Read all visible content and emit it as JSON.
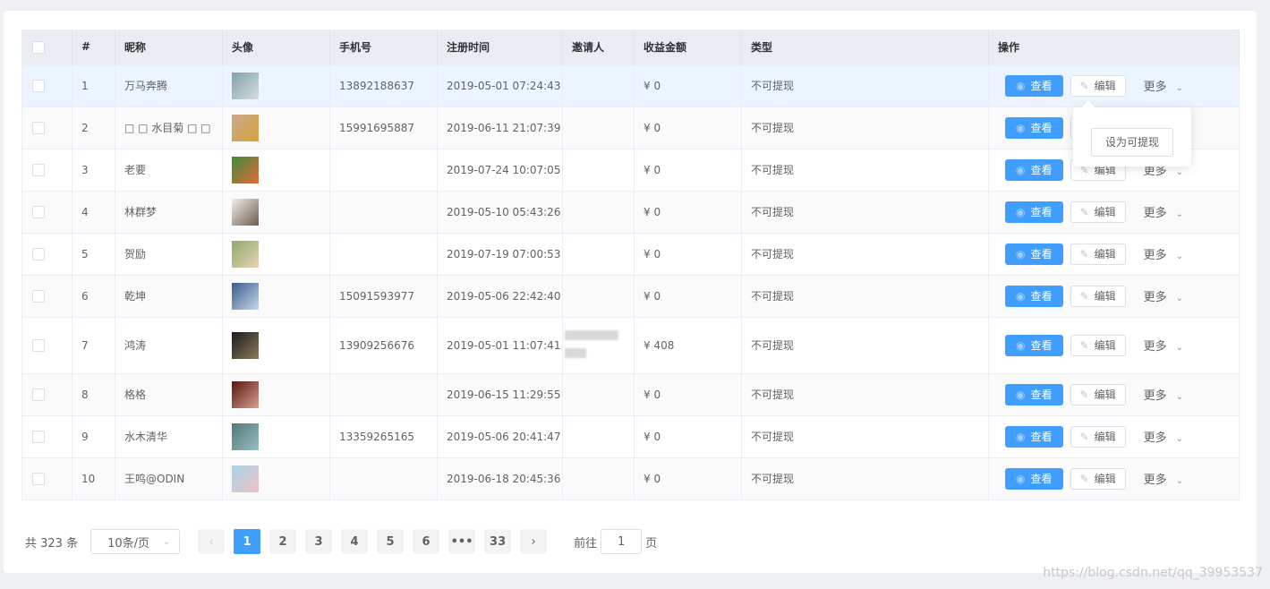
{
  "table": {
    "headers": [
      "#",
      "昵称",
      "头像",
      "手机号",
      "注册时间",
      "邀请人",
      "收益金额",
      "类型",
      "操作"
    ],
    "rows": [
      {
        "idx": "1",
        "nick": "万马奔腾",
        "phone": "13892188637",
        "time": "2019-05-01 07:24:43",
        "inviter": "",
        "amount": "¥ 0",
        "type": "不可提现",
        "avatar": [
          "#7fa3a8",
          "#d6dde0"
        ]
      },
      {
        "idx": "2",
        "nick": "□ □ 水目菊 □ □",
        "phone": "15991695887",
        "time": "2019-06-11 21:07:39",
        "inviter": "",
        "amount": "¥ 0",
        "type": "不可提现",
        "avatar": [
          "#c9a98a",
          "#d6a23a"
        ]
      },
      {
        "idx": "3",
        "nick": "老要",
        "phone": "",
        "time": "2019-07-24 10:07:05",
        "inviter": "",
        "amount": "¥ 0",
        "type": "不可提现",
        "avatar": [
          "#3f8b3a",
          "#e46a3a"
        ]
      },
      {
        "idx": "4",
        "nick": "林群梦",
        "phone": "",
        "time": "2019-05-10 05:43:26",
        "inviter": "",
        "amount": "¥ 0",
        "type": "不可提现",
        "avatar": [
          "#f2eeea",
          "#6d5b52"
        ]
      },
      {
        "idx": "5",
        "nick": "贺励",
        "phone": "",
        "time": "2019-07-19 07:00:53",
        "inviter": "",
        "amount": "¥ 0",
        "type": "不可提现",
        "avatar": [
          "#8cab6a",
          "#e9d2b5"
        ]
      },
      {
        "idx": "6",
        "nick": "乾坤",
        "phone": "15091593977",
        "time": "2019-05-06 22:42:40",
        "inviter": "",
        "amount": "¥ 0",
        "type": "不可提现",
        "avatar": [
          "#3a5c8e",
          "#c7d6e8"
        ]
      },
      {
        "idx": "7",
        "nick": "鸿涛",
        "phone": "13909256676",
        "time": "2019-05-01 11:07:41",
        "inviter": "blurred",
        "amount": "¥ 408",
        "type": "不可提现",
        "avatar": [
          "#1c1c1c",
          "#8a7b5a"
        ]
      },
      {
        "idx": "8",
        "nick": "格格",
        "phone": "",
        "time": "2019-06-15 11:29:55",
        "inviter": "",
        "amount": "¥ 0",
        "type": "不可提现",
        "avatar": [
          "#5a1414",
          "#d9a08e"
        ]
      },
      {
        "idx": "9",
        "nick": "水木清华",
        "phone": "13359265165",
        "time": "2019-05-06 20:41:47",
        "inviter": "",
        "amount": "¥ 0",
        "type": "不可提现",
        "avatar": [
          "#4e7a78",
          "#9cbcc0"
        ]
      },
      {
        "idx": "10",
        "nick": "王鸣@ODIN",
        "phone": "",
        "time": "2019-06-18 20:45:36",
        "inviter": "",
        "amount": "¥ 0",
        "type": "不可提现",
        "avatar": [
          "#a6d6e8",
          "#f0c0c8"
        ]
      }
    ],
    "view_label": "查看",
    "edit_label": "编辑",
    "more_label": "更多"
  },
  "dropdown": {
    "item": "设为可提现"
  },
  "pagination": {
    "total": "共 323 条",
    "page_size": "10条/页",
    "pages": [
      "1",
      "2",
      "3",
      "4",
      "5",
      "6",
      "•••",
      "33"
    ],
    "current": "1",
    "goto_label": "前往",
    "goto_value": "1",
    "page_suffix": "页"
  },
  "watermark": "https://blog.csdn.net/qq_39953537",
  "colors": {
    "primary": "#409eff",
    "header_bg": "#e9ecf2",
    "highlight_row": "#ecf5ff"
  }
}
